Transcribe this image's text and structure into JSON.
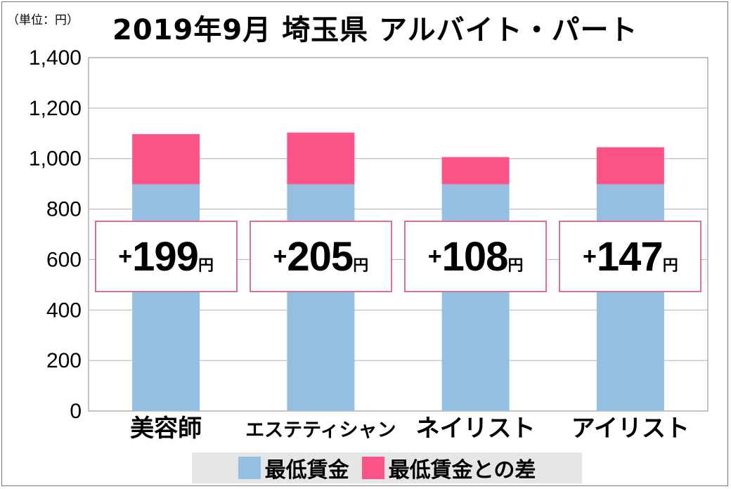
{
  "unit_label": "（単位：円）",
  "chart_data": {
    "type": "bar",
    "stacked": true,
    "title": "2019年9月 埼玉県 アルバイト・パート",
    "categories": [
      "美容師",
      "エステティシャン",
      "ネイリスト",
      "アイリスト"
    ],
    "series": [
      {
        "name": "最低賃金",
        "color": "#95bfe1",
        "values": [
          898,
          898,
          898,
          898
        ]
      },
      {
        "name": "最低賃金との差",
        "color": "#fc5488",
        "values": [
          199,
          205,
          108,
          147
        ]
      }
    ],
    "annotations": [
      {
        "plus": "+",
        "value": "199",
        "unit": "円"
      },
      {
        "plus": "+",
        "value": "205",
        "unit": "円"
      },
      {
        "plus": "+",
        "value": "108",
        "unit": "円"
      },
      {
        "plus": "+",
        "value": "147",
        "unit": "円"
      }
    ],
    "yticks": [
      "0",
      "200",
      "400",
      "600",
      "800",
      "1,000",
      "1,200",
      "1,400"
    ],
    "ylim": [
      0,
      1400
    ],
    "grid": true,
    "legend_position": "bottom"
  }
}
